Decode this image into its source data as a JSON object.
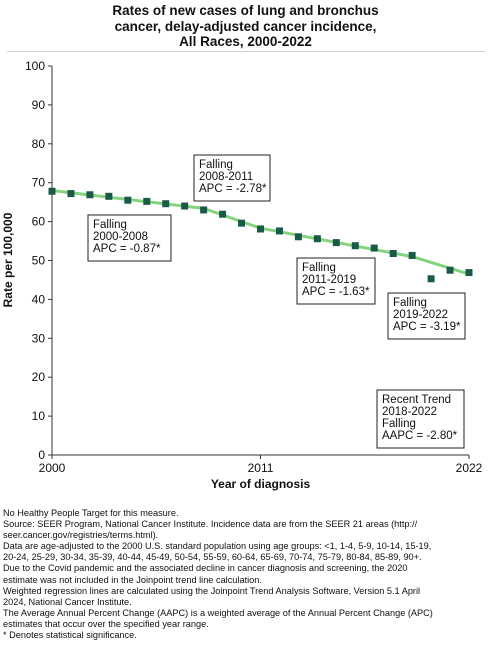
{
  "chart_title_lines": [
    "Rates of new cases of lung and bronchus",
    "cancer, delay-adjusted cancer incidence,",
    "All Races,  2000-2022"
  ],
  "chart_data": {
    "type": "line",
    "title": "Rates of new cases of lung and bronchus cancer, delay-adjusted cancer incidence, All Races, 2000-2022",
    "xlabel": "Year of diagnosis",
    "ylabel": "Rate per 100,000",
    "xlim": [
      2000,
      2022
    ],
    "ylim": [
      0,
      100
    ],
    "x_ticks": [
      "2000",
      "2011",
      "2022"
    ],
    "y_ticks": [
      "0",
      "10",
      "20",
      "30",
      "40",
      "50",
      "60",
      "70",
      "80",
      "90",
      "100"
    ],
    "grid": false,
    "observed": {
      "x": [
        2000,
        2001,
        2002,
        2003,
        2004,
        2005,
        2006,
        2007,
        2008,
        2009,
        2010,
        2011,
        2012,
        2013,
        2014,
        2015,
        2016,
        2017,
        2018,
        2019,
        2020,
        2021,
        2022
      ],
      "y": [
        67.8,
        67.2,
        66.9,
        66.5,
        65.5,
        65.2,
        64.6,
        64.0,
        63.0,
        61.9,
        59.6,
        58.1,
        57.6,
        56.1,
        55.6,
        54.6,
        53.8,
        53.2,
        51.8,
        51.3,
        45.3,
        47.5,
        46.9
      ]
    },
    "trend": {
      "x": [
        2000,
        2008,
        2011,
        2019,
        2022
      ],
      "y": [
        68.0,
        63.4,
        58.3,
        51.0,
        46.5
      ]
    },
    "segments": [
      {
        "period": "2000-2008",
        "direction": "Falling",
        "stat": "APC = -0.87*"
      },
      {
        "period": "2008-2011",
        "direction": "Falling",
        "stat": "APC = -2.78*"
      },
      {
        "period": "2011-2019",
        "direction": "Falling",
        "stat": "APC = -1.63*"
      },
      {
        "period": "2019-2022",
        "direction": "Falling",
        "stat": "APC = -3.19*"
      }
    ],
    "recent_trend": {
      "heading": "Recent Trend",
      "period": "2018-2022",
      "direction": "Falling",
      "stat": "AAPC = -2.80*"
    },
    "colors": {
      "trend_line": "#84d37f",
      "marker": "#1b5a48",
      "axis": "#333333"
    }
  },
  "footnotes": [
    "No Healthy People Target for this measure.",
    "Source: SEER Program, National Cancer Institute. Incidence data are from the SEER 21 areas (http://",
    "seer.cancer.gov/registries/terms.html).",
    "Data are age-adjusted to the 2000 U.S. standard population using age groups: <1, 1-4, 5-9, 10-14, 15-19,",
    "20-24, 25-29, 30-34, 35-39, 40-44, 45-49, 50-54, 55-59, 60-64, 65-69, 70-74, 75-79, 80-84, 85-89, 90+.",
    "Due to the Covid pandemic and the associated decline in cancer diagnosis and screening, the 2020",
    "estimate was not included in the Joinpoint trend line calculation.",
    "Weighted regression lines are calculated using the Joinpoint Trend Analysis Software, Version 5.1 April",
    "2024, National Cancer Institute.",
    "The Average Annual Percent Change (AAPC) is a weighted average of the Annual Percent Change (APC)",
    "estimates that occur over the specified year range.",
    "* Denotes statistical significance."
  ]
}
